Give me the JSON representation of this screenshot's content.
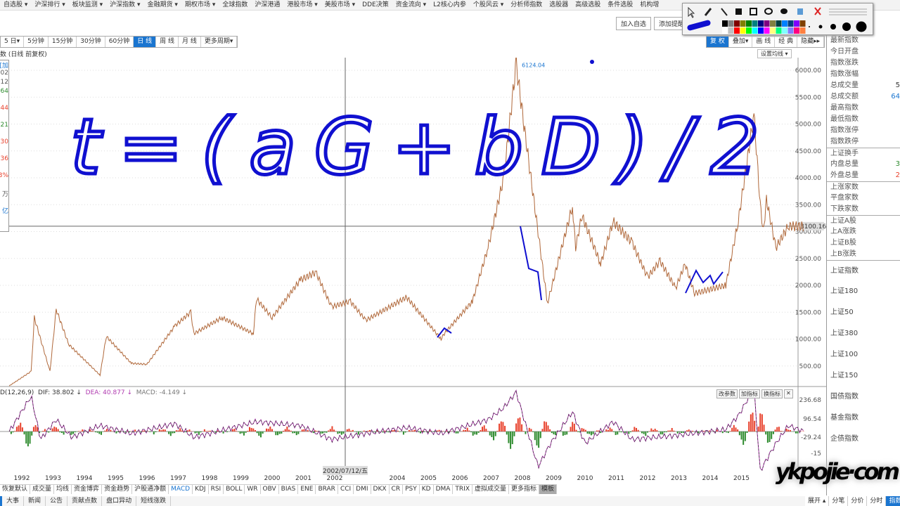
{
  "menu": [
    "自选股 ▾",
    "沪深排行 ▾",
    "板块监测 ▾",
    "沪深指数 ▾",
    "金融期货 ▾",
    "期权市场 ▾",
    "全球指数",
    "沪深港通",
    "港股市场 ▾",
    "美股市场 ▾",
    "DDE决策",
    "资金流向 ▾",
    "L2核心内参",
    "个股风云 ▾",
    "分析师指数",
    "选股器",
    "高级选股",
    "条件选股",
    "机构增"
  ],
  "header": {
    "add_watchlist": "加入自选",
    "add_alert": "添加提醒"
  },
  "periods": [
    "5 日▾",
    "5分钟",
    "15分钟",
    "30分钟",
    "60分钟",
    "日 线",
    "周 线",
    "月 线",
    "更多周期▾"
  ],
  "active_period": "日 线",
  "right_tools": [
    "复 权",
    "叠加▾",
    "画 线",
    "经 典",
    "隐藏▸▸"
  ],
  "chart_subtitle": "数 (日线 前复权)",
  "set_ma": "设置均线 ▾",
  "left_info": [
    "加]",
    "02",
    "12",
    "64",
    "44",
    "21",
    "30",
    "36",
    "3%",
    "万",
    "亿"
  ],
  "right_panel": {
    "group1": [
      {
        "label": "最新指数",
        "value": ""
      },
      {
        "label": "今日开盘",
        "value": ""
      },
      {
        "label": "指数涨跌",
        "value": ""
      },
      {
        "label": "指数涨幅",
        "value": ""
      },
      {
        "label": "总成交量",
        "value": "5"
      },
      {
        "label": "总成交额",
        "value": "64"
      },
      {
        "label": "最高指数",
        "value": ""
      },
      {
        "label": "最低指数",
        "value": ""
      },
      {
        "label": "指数涨停",
        "value": ""
      },
      {
        "label": "指数跌停",
        "value": ""
      }
    ],
    "group2": [
      {
        "label": "上证换手",
        "value": ""
      },
      {
        "label": "内盘总量",
        "value": "3"
      },
      {
        "label": "外盘总量",
        "value": "2"
      }
    ],
    "group3": [
      "上涨家数",
      "平盘家数",
      "下跌家数"
    ],
    "group4": [
      "上证A股",
      "上A涨跌",
      "上证B股",
      "上B涨跌"
    ],
    "indices": [
      "上证指数",
      "上证180",
      "上证50",
      "上证380",
      "上证100",
      "上证150",
      "国债指数",
      "基金指数",
      "企债指数"
    ]
  },
  "macd": {
    "params": "D(12,26,9)",
    "dif": "DIF: 38.802 ↓",
    "dea": "DEA: 40.877 ↓",
    "macd": "MACD: -4.149 ↓",
    "buttons": [
      "改参数",
      "加指标",
      "换指标",
      "✕"
    ],
    "axis": [
      "236.68",
      "96.54",
      "-29.24",
      "-15"
    ]
  },
  "indicator_tabs": [
    "恢复默认",
    "成交量",
    "均线",
    "资金博弈",
    "资金趋势",
    "沪股通净额",
    "MACD",
    "KDJ",
    "RSI",
    "BOLL",
    "WR",
    "OBV",
    "BIAS",
    "ENE",
    "BRAR",
    "CCI",
    "DMI",
    "DKX",
    "CR",
    "PSY",
    "KD",
    "DMA",
    "TRIX",
    "虚拟成交量",
    "更多指标",
    "模板"
  ],
  "active_indicator": "MACD",
  "bottom_tabs": [
    "大事",
    "新闻",
    "公告",
    "贡献点数",
    "盘口异动",
    "短线涨跌"
  ],
  "bottom_right_tabs": [
    "展开 ▴",
    "分笔",
    "分价",
    "分时",
    "指数"
  ],
  "watermark": "ykpojie·com",
  "annotation": "t=(aG+bD)/2",
  "colors": {
    "accent": "#1a75d0",
    "up": "#e8412c",
    "down": "#2e8b2e",
    "pen": "#1010d0",
    "dea": "#b03ab0"
  },
  "chart_data": {
    "type": "line",
    "price_axis": {
      "ticks": [
        "6000.00",
        "5500.00",
        "5000.00",
        "4500.00",
        "4000.00",
        "3500.00",
        "3000.00",
        "2500.00",
        "2000.00",
        "1500.00",
        "1000.00",
        "500.00"
      ],
      "ylim": [
        500,
        6000
      ],
      "current": "3100.16"
    },
    "peak_label": "6124.04",
    "crosshair_date": "2002/07/12/五",
    "x_ticks": [
      "1992",
      "1993",
      "1994",
      "1995",
      "1996",
      "1997",
      "1998",
      "1999",
      "2000",
      "2001",
      "2002",
      "2004",
      "2005",
      "2006",
      "2007",
      "2008",
      "2009",
      "2010",
      "2011",
      "2012",
      "2013",
      "2014",
      "2015"
    ],
    "price": [
      [
        1991.6,
        130
      ],
      [
        1992.3,
        400
      ],
      [
        1992.4,
        1400
      ],
      [
        1992.9,
        400
      ],
      [
        1993.1,
        1550
      ],
      [
        1993.5,
        900
      ],
      [
        1994.5,
        330
      ],
      [
        1994.7,
        1050
      ],
      [
        1995.5,
        550
      ],
      [
        1996.0,
        530
      ],
      [
        1996.9,
        1250
      ],
      [
        1997.4,
        1500
      ],
      [
        1997.5,
        1100
      ],
      [
        1998.4,
        1400
      ],
      [
        1999.4,
        1100
      ],
      [
        1999.5,
        1750
      ],
      [
        2000.0,
        1400
      ],
      [
        2000.9,
        2100
      ],
      [
        2001.4,
        2240
      ],
      [
        2001.9,
        1600
      ],
      [
        2002.5,
        1700
      ],
      [
        2003.0,
        1350
      ],
      [
        2004.3,
        1780
      ],
      [
        2005.4,
        1000
      ],
      [
        2005.5,
        1100
      ],
      [
        2006.4,
        1700
      ],
      [
        2006.9,
        2700
      ],
      [
        2007.4,
        4000
      ],
      [
        2007.8,
        6124
      ],
      [
        2008.0,
        5200
      ],
      [
        2008.8,
        1664
      ],
      [
        2009.6,
        3478
      ],
      [
        2009.7,
        2700
      ],
      [
        2009.9,
        3300
      ],
      [
        2010.5,
        2400
      ],
      [
        2010.9,
        3186
      ],
      [
        2011.5,
        2800
      ],
      [
        2012.0,
        2150
      ],
      [
        2012.4,
        2450
      ],
      [
        2012.9,
        1950
      ],
      [
        2013.2,
        2400
      ],
      [
        2013.5,
        1850
      ],
      [
        2014.5,
        2000
      ],
      [
        2014.9,
        3200
      ],
      [
        2015.4,
        5178
      ],
      [
        2015.6,
        3500
      ],
      [
        2015.7,
        3000
      ],
      [
        2015.8,
        3600
      ],
      [
        2016.1,
        2700
      ],
      [
        2016.5,
        3100
      ],
      [
        2017.0,
        3100
      ]
    ],
    "macd_series": [
      [
        1991.6,
        0
      ],
      [
        1992.3,
        180
      ],
      [
        1992.6,
        -40
      ],
      [
        1993.1,
        60
      ],
      [
        1993.6,
        -30
      ],
      [
        1994.5,
        30
      ],
      [
        1995.5,
        -10
      ],
      [
        1996.9,
        40
      ],
      [
        1997.5,
        -30
      ],
      [
        1999.5,
        50
      ],
      [
        2000.9,
        30
      ],
      [
        2001.9,
        -40
      ],
      [
        2003.0,
        -10
      ],
      [
        2004.3,
        20
      ],
      [
        2005.4,
        -10
      ],
      [
        2006.9,
        60
      ],
      [
        2007.4,
        120
      ],
      [
        2007.8,
        200
      ],
      [
        2008.5,
        -180
      ],
      [
        2008.9,
        -60
      ],
      [
        2009.6,
        100
      ],
      [
        2010.0,
        -60
      ],
      [
        2010.9,
        50
      ],
      [
        2011.5,
        -40
      ],
      [
        2012.9,
        -20
      ],
      [
        2014.5,
        10
      ],
      [
        2014.9,
        80
      ],
      [
        2015.4,
        220
      ],
      [
        2015.6,
        -200
      ],
      [
        2016.1,
        -60
      ],
      [
        2016.5,
        30
      ],
      [
        2017.0,
        0
      ]
    ]
  }
}
